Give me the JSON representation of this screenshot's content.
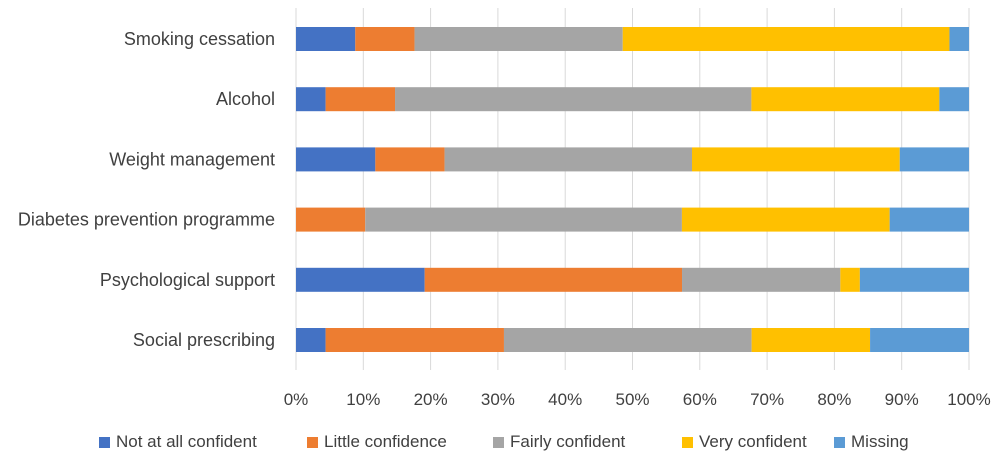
{
  "chart_data": {
    "type": "bar",
    "orientation": "horizontal",
    "stacked": "percent",
    "categories": [
      "Smoking cessation",
      "Alcohol",
      "Weight management",
      "Diabetes prevention programme",
      "Psychological support",
      "Social prescribing"
    ],
    "series": [
      {
        "name": "Not at all confident",
        "color": "#4472C4",
        "values": [
          8.8,
          4.4,
          11.8,
          0,
          19.1,
          4.4
        ]
      },
      {
        "name": "Little confidence",
        "color": "#ED7D31",
        "values": [
          8.8,
          10.3,
          10.3,
          10.3,
          38.2,
          26.5
        ]
      },
      {
        "name": "Fairly confident",
        "color": "#A5A5A5",
        "values": [
          30.9,
          52.9,
          36.8,
          47.1,
          23.5,
          36.8
        ]
      },
      {
        "name": "Very confident",
        "color": "#FFC000",
        "values": [
          48.5,
          27.9,
          30.9,
          30.9,
          2.9,
          17.6
        ]
      },
      {
        "name": "Missing",
        "color": "#5B9BD5",
        "values": [
          2.9,
          4.4,
          10.3,
          11.8,
          16.2,
          14.7
        ]
      }
    ],
    "xlim": [
      0,
      100
    ],
    "xticks": [
      "0%",
      "10%",
      "20%",
      "30%",
      "40%",
      "50%",
      "60%",
      "70%",
      "80%",
      "90%",
      "100%"
    ],
    "grid": true,
    "legend_position": "bottom",
    "title": "",
    "xlabel": "",
    "ylabel": ""
  }
}
